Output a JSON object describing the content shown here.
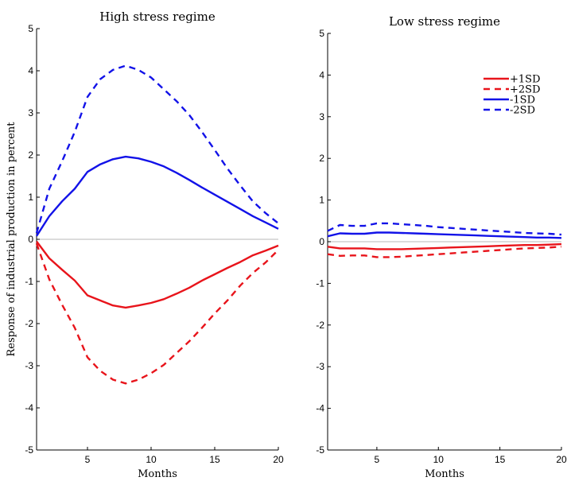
{
  "chart_data": [
    {
      "type": "line",
      "title": "High stress regime",
      "xlabel": "Months",
      "ylabel": "Response of industrial production in percent",
      "xlim": [
        1,
        20
      ],
      "ylim": [
        -5,
        5
      ],
      "xticks": [
        5,
        10,
        15,
        20
      ],
      "yticks": [
        -5,
        -4,
        -3,
        -2,
        -1,
        0,
        1,
        2,
        3,
        4,
        5
      ],
      "zero_line": true,
      "grid": false,
      "x": [
        1,
        2,
        3,
        4,
        5,
        6,
        7,
        8,
        9,
        10,
        11,
        12,
        13,
        14,
        15,
        16,
        17,
        18,
        19,
        20
      ],
      "series": [
        {
          "name": "+1SD",
          "color": "#e8141b",
          "dash": "solid",
          "values": [
            -0.05,
            -0.45,
            -0.72,
            -0.98,
            -1.33,
            -1.45,
            -1.57,
            -1.62,
            -1.57,
            -1.51,
            -1.42,
            -1.29,
            -1.15,
            -0.98,
            -0.83,
            -0.68,
            -0.54,
            -0.38,
            -0.27,
            -0.15
          ]
        },
        {
          "name": "+2SD",
          "color": "#e8141b",
          "dash": "dashed",
          "values": [
            -0.1,
            -0.95,
            -1.55,
            -2.1,
            -2.8,
            -3.12,
            -3.33,
            -3.42,
            -3.33,
            -3.18,
            -2.98,
            -2.7,
            -2.42,
            -2.1,
            -1.76,
            -1.45,
            -1.1,
            -0.8,
            -0.55,
            -0.25
          ]
        },
        {
          "name": "-1SD",
          "color": "#1212e8",
          "dash": "solid",
          "values": [
            0.08,
            0.55,
            0.9,
            1.2,
            1.6,
            1.78,
            1.9,
            1.96,
            1.92,
            1.84,
            1.73,
            1.58,
            1.41,
            1.23,
            1.06,
            0.89,
            0.72,
            0.55,
            0.4,
            0.25
          ]
        },
        {
          "name": "-2SD",
          "color": "#1212e8",
          "dash": "dashed",
          "values": [
            0.15,
            1.2,
            1.85,
            2.55,
            3.38,
            3.8,
            4.02,
            4.12,
            4.02,
            3.84,
            3.56,
            3.28,
            2.95,
            2.55,
            2.12,
            1.68,
            1.28,
            0.9,
            0.62,
            0.38
          ]
        }
      ]
    },
    {
      "type": "line",
      "title": "Low stress regime",
      "xlabel": "Months",
      "ylabel": "",
      "xlim": [
        1,
        20
      ],
      "ylim": [
        -5,
        5
      ],
      "xticks": [
        5,
        10,
        15,
        20
      ],
      "yticks": [
        -5,
        -4,
        -3,
        -2,
        -1,
        0,
        1,
        2,
        3,
        4,
        5
      ],
      "zero_line": true,
      "grid": false,
      "legend": "top-right",
      "x": [
        1,
        2,
        3,
        4,
        5,
        6,
        7,
        8,
        9,
        10,
        11,
        12,
        13,
        14,
        15,
        16,
        17,
        18,
        19,
        20
      ],
      "series": [
        {
          "name": "+1SD",
          "color": "#e8141b",
          "dash": "solid",
          "values": [
            -0.12,
            -0.16,
            -0.16,
            -0.16,
            -0.18,
            -0.18,
            -0.18,
            -0.17,
            -0.16,
            -0.15,
            -0.14,
            -0.13,
            -0.12,
            -0.11,
            -0.1,
            -0.09,
            -0.08,
            -0.08,
            -0.07,
            -0.06
          ]
        },
        {
          "name": "+2SD",
          "color": "#e8141b",
          "dash": "dashed",
          "values": [
            -0.3,
            -0.34,
            -0.33,
            -0.33,
            -0.37,
            -0.37,
            -0.36,
            -0.34,
            -0.32,
            -0.3,
            -0.28,
            -0.26,
            -0.24,
            -0.22,
            -0.2,
            -0.18,
            -0.16,
            -0.15,
            -0.14,
            -0.12
          ]
        },
        {
          "name": "-1SD",
          "color": "#1212e8",
          "dash": "solid",
          "values": [
            0.13,
            0.2,
            0.19,
            0.19,
            0.22,
            0.22,
            0.21,
            0.2,
            0.19,
            0.18,
            0.17,
            0.16,
            0.15,
            0.14,
            0.13,
            0.12,
            0.11,
            0.1,
            0.1,
            0.09
          ]
        },
        {
          "name": "-2SD",
          "color": "#1212e8",
          "dash": "dashed",
          "values": [
            0.26,
            0.4,
            0.38,
            0.38,
            0.44,
            0.44,
            0.42,
            0.4,
            0.38,
            0.35,
            0.33,
            0.31,
            0.29,
            0.27,
            0.25,
            0.23,
            0.21,
            0.2,
            0.19,
            0.17
          ]
        }
      ]
    }
  ]
}
